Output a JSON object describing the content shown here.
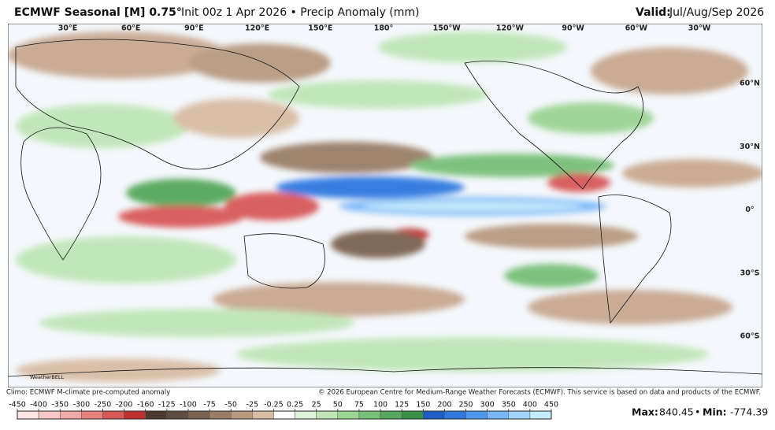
{
  "header": {
    "model": "ECMWF Seasonal [M] 0.75°",
    "info": "Init 00z 1 Apr 2026 • Precip Anomaly (mm)",
    "valid_label": "Valid:",
    "valid_period": "Jul/Aug/Sep 2026"
  },
  "longitudes": [
    "30°E",
    "60°E",
    "90°E",
    "120°E",
    "150°E",
    "180°",
    "150°W",
    "120°W",
    "90°W",
    "60°W",
    "30°W"
  ],
  "latitudes": [
    "60°N",
    "30°N",
    "0°",
    "30°S",
    "60°S"
  ],
  "logo": "WeatherBELL",
  "footer": {
    "climo": "Climo: ECMWF M-climate pre-computed anomaly",
    "copyright": "© 2026 European Centre for Medium-Range Weather Forecasts (ECMWF). This service is based on data and products of the ECMWF."
  },
  "colorbar": {
    "ticks": [
      -450,
      -400,
      -350,
      -300,
      -250,
      -200,
      -160,
      -125,
      -100,
      -75,
      -50,
      -25,
      -0.25,
      0.25,
      25,
      50,
      75,
      100,
      125,
      150,
      200,
      250,
      300,
      350,
      400,
      450
    ],
    "colors": [
      "#fce4e4",
      "#f8c8c8",
      "#f0a8a8",
      "#e88080",
      "#d85858",
      "#c03030",
      "#4a3a32",
      "#5e4c40",
      "#7a6250",
      "#9a7e68",
      "#b89a80",
      "#d8bca4",
      "#ffffff",
      "#dff2dc",
      "#c0e6b8",
      "#9cd494",
      "#78bf78",
      "#56a85c",
      "#3a9048",
      "#1e5cc8",
      "#2e78e0",
      "#4c98f0",
      "#78b8f8",
      "#a0d4fa",
      "#c4ecfc"
    ]
  },
  "stats": {
    "max_label": "Max:",
    "max": 840.45,
    "separator": "•",
    "min_label": "Min:",
    "min": -774.39
  }
}
